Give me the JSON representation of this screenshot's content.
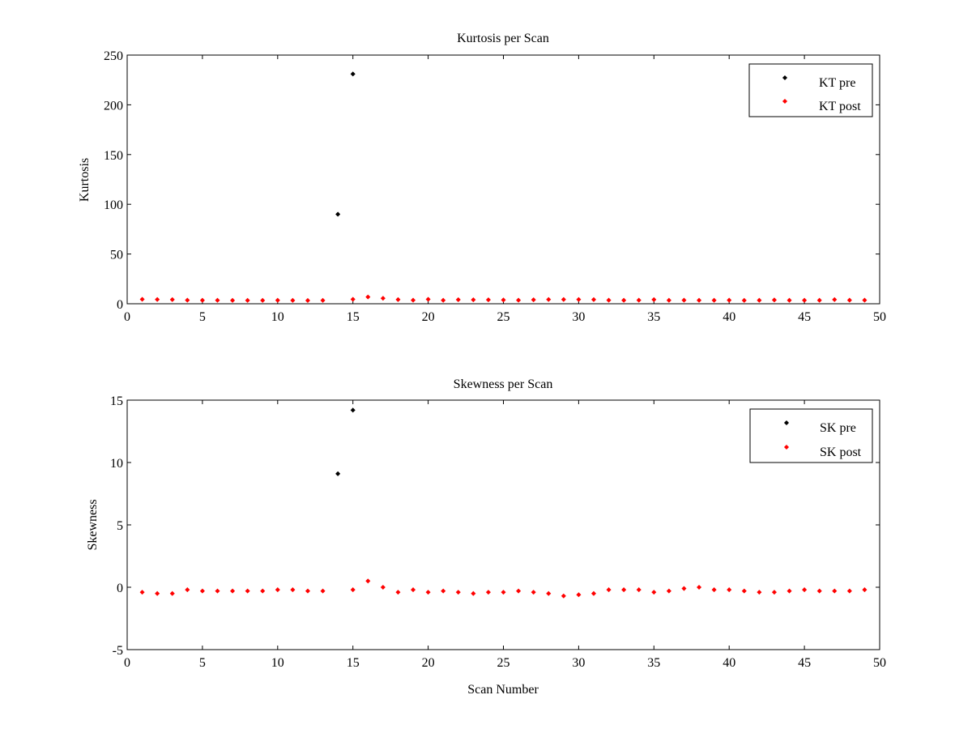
{
  "chart_data": [
    {
      "type": "scatter",
      "title": "Kurtosis per Scan",
      "xlabel": "",
      "ylabel": "Kurtosis",
      "xlim": [
        0,
        50
      ],
      "ylim": [
        0,
        250
      ],
      "xticks": [
        0,
        5,
        10,
        15,
        20,
        25,
        30,
        35,
        40,
        45,
        50
      ],
      "yticks": [
        0,
        50,
        100,
        150,
        200,
        250
      ],
      "grid": false,
      "legend_position": "top-right",
      "series": [
        {
          "name": "KT pre",
          "color": "#000000",
          "points": [
            [
              14,
              90
            ],
            [
              15,
              231
            ]
          ]
        },
        {
          "name": "KT post",
          "color": "#ff0000",
          "points": [
            [
              1,
              4.5
            ],
            [
              2,
              4.3
            ],
            [
              3,
              4.2
            ],
            [
              4,
              3.6
            ],
            [
              5,
              3.5
            ],
            [
              6,
              3.5
            ],
            [
              7,
              3.4
            ],
            [
              8,
              3.4
            ],
            [
              9,
              3.4
            ],
            [
              10,
              3.5
            ],
            [
              11,
              3.4
            ],
            [
              12,
              3.3
            ],
            [
              13,
              3.4
            ],
            [
              15,
              4.5
            ],
            [
              16,
              6.8
            ],
            [
              17,
              5.5
            ],
            [
              18,
              4.2
            ],
            [
              19,
              3.6
            ],
            [
              20,
              4.5
            ],
            [
              21,
              3.5
            ],
            [
              22,
              4.1
            ],
            [
              23,
              4.0
            ],
            [
              24,
              4.0
            ],
            [
              25,
              3.8
            ],
            [
              26,
              3.6
            ],
            [
              27,
              4.0
            ],
            [
              28,
              4.3
            ],
            [
              29,
              4.3
            ],
            [
              30,
              4.3
            ],
            [
              31,
              4.2
            ],
            [
              32,
              3.6
            ],
            [
              33,
              3.5
            ],
            [
              34,
              3.6
            ],
            [
              35,
              4.2
            ],
            [
              36,
              3.5
            ],
            [
              37,
              3.6
            ],
            [
              38,
              3.5
            ],
            [
              39,
              3.5
            ],
            [
              40,
              3.6
            ],
            [
              41,
              3.4
            ],
            [
              42,
              3.5
            ],
            [
              43,
              3.8
            ],
            [
              44,
              3.5
            ],
            [
              45,
              3.5
            ],
            [
              46,
              3.5
            ],
            [
              47,
              4.2
            ],
            [
              48,
              3.6
            ],
            [
              49,
              3.6
            ]
          ]
        }
      ]
    },
    {
      "type": "scatter",
      "title": "Skewness per Scan",
      "xlabel": "Scan Number",
      "ylabel": "Skewness",
      "xlim": [
        0,
        50
      ],
      "ylim": [
        -5,
        15
      ],
      "xticks": [
        0,
        5,
        10,
        15,
        20,
        25,
        30,
        35,
        40,
        45,
        50
      ],
      "yticks": [
        -5,
        0,
        5,
        10,
        15
      ],
      "grid": false,
      "legend_position": "top-right",
      "series": [
        {
          "name": "SK pre",
          "color": "#000000",
          "points": [
            [
              14,
              9.1
            ],
            [
              15,
              14.2
            ]
          ]
        },
        {
          "name": "SK post",
          "color": "#ff0000",
          "points": [
            [
              1,
              -0.4
            ],
            [
              2,
              -0.5
            ],
            [
              3,
              -0.5
            ],
            [
              4,
              -0.2
            ],
            [
              5,
              -0.3
            ],
            [
              6,
              -0.3
            ],
            [
              7,
              -0.3
            ],
            [
              8,
              -0.3
            ],
            [
              9,
              -0.3
            ],
            [
              10,
              -0.2
            ],
            [
              11,
              -0.2
            ],
            [
              12,
              -0.3
            ],
            [
              13,
              -0.3
            ],
            [
              15,
              -0.2
            ],
            [
              16,
              0.5
            ],
            [
              17,
              0.0
            ],
            [
              18,
              -0.4
            ],
            [
              19,
              -0.2
            ],
            [
              20,
              -0.4
            ],
            [
              21,
              -0.3
            ],
            [
              22,
              -0.4
            ],
            [
              23,
              -0.5
            ],
            [
              24,
              -0.4
            ],
            [
              25,
              -0.4
            ],
            [
              26,
              -0.3
            ],
            [
              27,
              -0.4
            ],
            [
              28,
              -0.5
            ],
            [
              29,
              -0.7
            ],
            [
              30,
              -0.6
            ],
            [
              31,
              -0.5
            ],
            [
              32,
              -0.2
            ],
            [
              33,
              -0.2
            ],
            [
              34,
              -0.2
            ],
            [
              35,
              -0.4
            ],
            [
              36,
              -0.3
            ],
            [
              37,
              -0.1
            ],
            [
              38,
              0.0
            ],
            [
              39,
              -0.2
            ],
            [
              40,
              -0.2
            ],
            [
              41,
              -0.3
            ],
            [
              42,
              -0.4
            ],
            [
              43,
              -0.4
            ],
            [
              44,
              -0.3
            ],
            [
              45,
              -0.2
            ],
            [
              46,
              -0.3
            ],
            [
              47,
              -0.3
            ],
            [
              48,
              -0.3
            ],
            [
              49,
              -0.2
            ]
          ]
        }
      ]
    }
  ]
}
